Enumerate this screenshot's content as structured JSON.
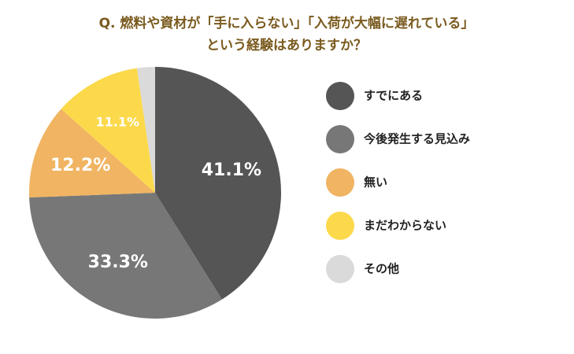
{
  "chart_data": {
    "type": "pie",
    "title": [
      "Q. 燃料や資材が「手に入らない」「入荷が大幅に遅れている」",
      "という経験はありますか？"
    ],
    "categories": [
      "すでにある",
      "今後発生する見込み",
      "無い",
      "まだわからない",
      "その他"
    ],
    "values": [
      41.1,
      33.3,
      12.2,
      11.1,
      2.3
    ],
    "value_labels": [
      "41.1%",
      "33.3%",
      "12.2%",
      "11.1%",
      null
    ],
    "colors": [
      "#555555",
      "#777777",
      "#f0b462",
      "#fcd94b",
      "#dadada"
    ]
  }
}
